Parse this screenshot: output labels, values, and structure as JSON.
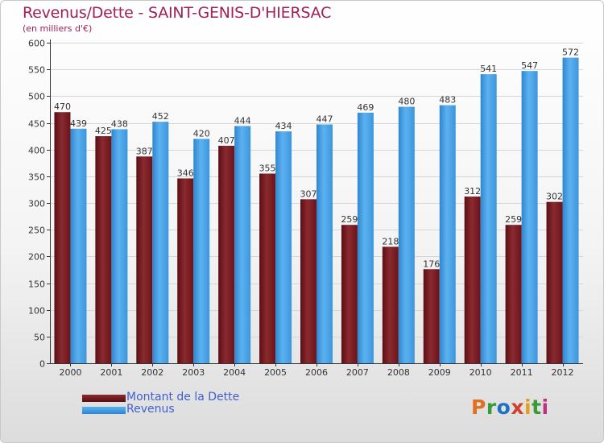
{
  "title": "Revenus/Dette - SAINT-GENIS-D'HIERSAC",
  "subtitle": "(en milliers d'€)",
  "colors": {
    "title": "#a0205a",
    "dette": "#7a1c22",
    "revenus": "#4aa3e6",
    "legend_text": "#4060d0"
  },
  "logo": "Proxiti",
  "chart_data": {
    "type": "bar",
    "categories": [
      "2000",
      "2001",
      "2002",
      "2003",
      "2004",
      "2005",
      "2006",
      "2007",
      "2008",
      "2009",
      "2010",
      "2011",
      "2012"
    ],
    "series": [
      {
        "name": "Montant de la Dette",
        "values": [
          470,
          425,
          387,
          346,
          407,
          355,
          307,
          259,
          218,
          176,
          312,
          259,
          302
        ]
      },
      {
        "name": "Revenus",
        "values": [
          439,
          438,
          452,
          420,
          444,
          434,
          447,
          469,
          480,
          483,
          541,
          547,
          572
        ]
      }
    ],
    "ylim": [
      0,
      600
    ],
    "yticks": [
      0,
      50,
      100,
      150,
      200,
      250,
      300,
      350,
      400,
      450,
      500,
      550,
      600
    ],
    "grid": true,
    "legend": "bottom-left"
  }
}
